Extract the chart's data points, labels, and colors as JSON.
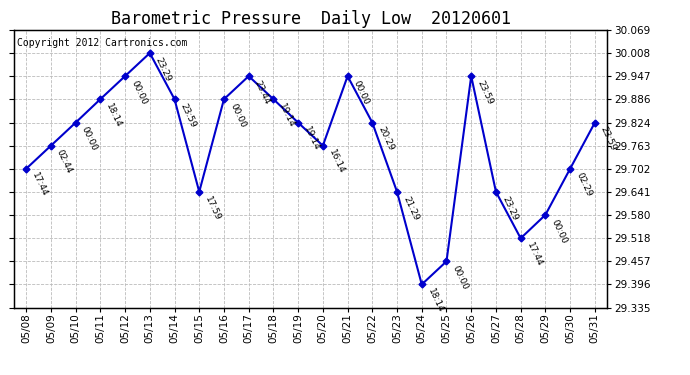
{
  "title": "Barometric Pressure  Daily Low  20120601",
  "copyright": "Copyright 2012 Cartronics.com",
  "x_labels": [
    "05/08",
    "05/09",
    "05/10",
    "05/11",
    "05/12",
    "05/13",
    "05/14",
    "05/15",
    "05/16",
    "05/17",
    "05/18",
    "05/19",
    "05/20",
    "05/21",
    "05/22",
    "05/23",
    "05/24",
    "05/25",
    "05/26",
    "05/27",
    "05/28",
    "05/29",
    "05/30",
    "05/31"
  ],
  "y_values": [
    29.702,
    29.763,
    29.824,
    29.886,
    29.947,
    30.008,
    29.886,
    29.641,
    29.886,
    29.947,
    29.886,
    29.824,
    29.763,
    29.947,
    29.824,
    29.641,
    29.396,
    29.457,
    29.947,
    29.641,
    29.518,
    29.58,
    29.702,
    29.824
  ],
  "point_labels": [
    "17:44",
    "02:44",
    "00:00",
    "18:14",
    "00:00",
    "23:29",
    "23:59",
    "17:59",
    "00:00",
    "23:44",
    "19:14",
    "19:14",
    "16:14",
    "00:00",
    "20:29",
    "21:29",
    "18:14",
    "00:00",
    "23:59",
    "23:29",
    "17:44",
    "00:00",
    "02:29",
    "23:59"
  ],
  "ylim_min": 29.335,
  "ylim_max": 30.069,
  "yticks": [
    29.335,
    29.396,
    29.457,
    29.518,
    29.58,
    29.641,
    29.702,
    29.763,
    29.824,
    29.886,
    29.947,
    30.008,
    30.069
  ],
  "line_color": "#0000cc",
  "marker_color": "#0000cc",
  "bg_color": "#ffffff",
  "grid_color": "#bbbbbb",
  "title_fontsize": 12,
  "tick_fontsize": 7.5,
  "label_fontsize": 7.5,
  "point_label_fontsize": 6.5,
  "copyright_fontsize": 7
}
